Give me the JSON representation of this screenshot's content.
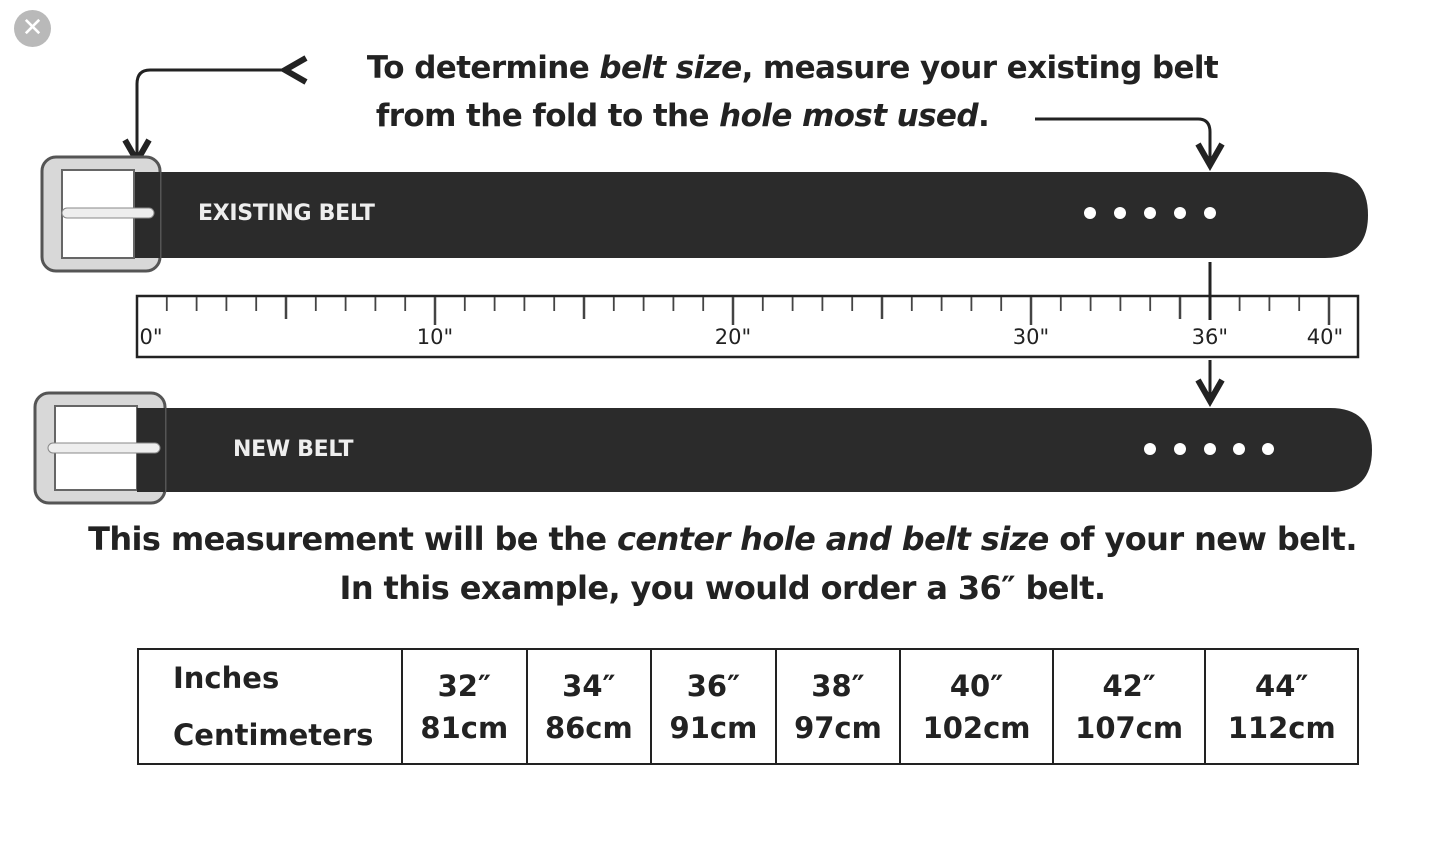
{
  "viewer": {
    "close_icon": "close-icon"
  },
  "instruction": {
    "line1": {
      "a": "To determine ",
      "b": "belt size",
      "c": ", measure your existing belt"
    },
    "line2": {
      "a": "from the fold to the ",
      "b": "hole most used",
      "c": "."
    }
  },
  "existing_belt": {
    "label": "EXISTING BELT"
  },
  "new_belt": {
    "label": "NEW BELT"
  },
  "ruler": {
    "labels": [
      "0\"",
      "10\"",
      "20\"",
      "30\"",
      "36\"",
      "40\""
    ],
    "marked_value": 36
  },
  "result": {
    "line1": {
      "a": "This measurement will be the ",
      "b": "center hole and belt size",
      "c": " of your new belt."
    },
    "line2": "In this example, you would order a 36″ belt."
  },
  "size_table": {
    "row_labels": [
      "Inches",
      "Centimeters"
    ],
    "columns": [
      {
        "in": "32″",
        "cm": "81cm"
      },
      {
        "in": "34″",
        "cm": "86cm"
      },
      {
        "in": "36″",
        "cm": "91cm"
      },
      {
        "in": "38″",
        "cm": "97cm"
      },
      {
        "in": "40″",
        "cm": "102cm"
      },
      {
        "in": "42″",
        "cm": "107cm"
      },
      {
        "in": "44″",
        "cm": "112cm"
      }
    ]
  }
}
